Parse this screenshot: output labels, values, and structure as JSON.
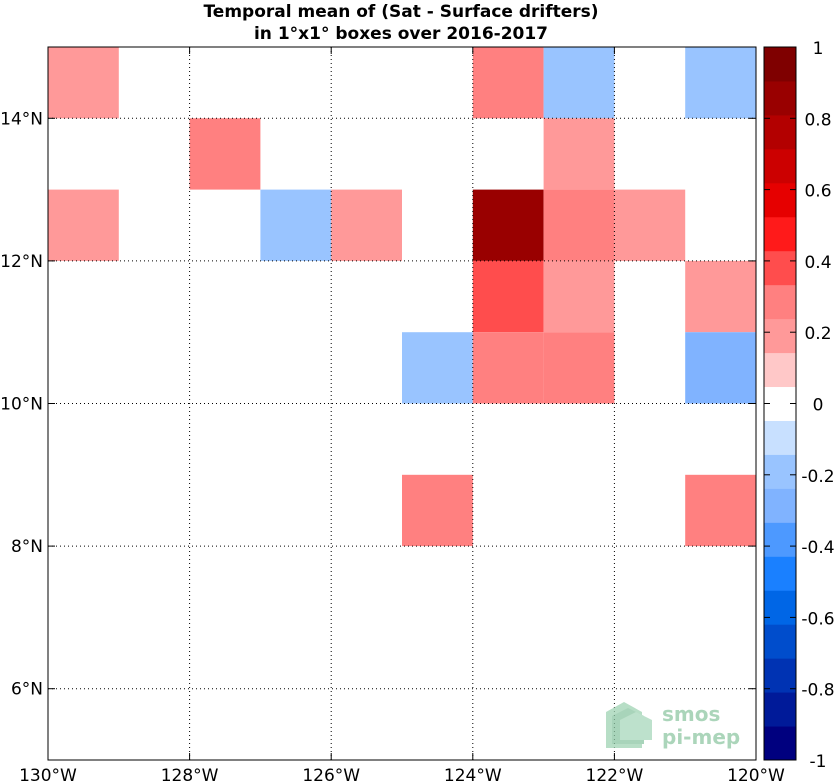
{
  "chart_data": {
    "type": "heatmap",
    "title": "Temporal mean of (Sat - Surface drifters)",
    "subtitle": "in 1°x1° boxes over 2016-2017",
    "xlim": [
      -130,
      -120
    ],
    "ylim": [
      5,
      15
    ],
    "grid": true,
    "x_ticks": [
      {
        "value": -130,
        "label": "130°W"
      },
      {
        "value": -128,
        "label": "128°W"
      },
      {
        "value": -126,
        "label": "126°W"
      },
      {
        "value": -124,
        "label": "124°W"
      },
      {
        "value": -122,
        "label": "122°W"
      },
      {
        "value": -120,
        "label": "120°W"
      }
    ],
    "y_ticks": [
      {
        "value": 6,
        "label": "6°N"
      },
      {
        "value": 8,
        "label": "8°N"
      },
      {
        "value": 10,
        "label": "10°N"
      },
      {
        "value": 12,
        "label": "12°N"
      },
      {
        "value": 14,
        "label": "14°N"
      }
    ],
    "colorbar": {
      "range": [
        -1,
        1
      ],
      "ticks": [
        {
          "value": 1,
          "label": "1"
        },
        {
          "value": 0.8,
          "label": "0.8"
        },
        {
          "value": 0.6,
          "label": "0.6"
        },
        {
          "value": 0.4,
          "label": "0.4"
        },
        {
          "value": 0.2,
          "label": "0.2"
        },
        {
          "value": 0,
          "label": "0"
        },
        {
          "value": -0.2,
          "label": "-0.2"
        },
        {
          "value": -0.4,
          "label": "-0.4"
        },
        {
          "value": -0.6,
          "label": "-0.6"
        },
        {
          "value": -0.8,
          "label": "-0.8"
        },
        {
          "value": -1,
          "label": "-1"
        }
      ],
      "colors": [
        "#00007f",
        "#001a99",
        "#0033b3",
        "#004dcc",
        "#0066e6",
        "#1a80ff",
        "#4d99ff",
        "#80b3ff",
        "#99c4ff",
        "#c8e0ff",
        "#ffffff",
        "#ffc8c8",
        "#ff9999",
        "#ff8080",
        "#ff4d4d",
        "#ff1a1a",
        "#e60000",
        "#cc0000",
        "#b30000",
        "#990000",
        "#7f0000"
      ]
    },
    "cells": [
      {
        "lon": -130,
        "lat": 14,
        "value": 0.15
      },
      {
        "lon": -124,
        "lat": 14,
        "value": 0.3
      },
      {
        "lon": -123,
        "lat": 14,
        "value": -0.15
      },
      {
        "lon": -121,
        "lat": 14,
        "value": -0.15
      },
      {
        "lon": -128,
        "lat": 13,
        "value": 0.3
      },
      {
        "lon": -123,
        "lat": 13,
        "value": 0.15
      },
      {
        "lon": -130,
        "lat": 12,
        "value": 0.15
      },
      {
        "lon": -127,
        "lat": 12,
        "value": -0.15
      },
      {
        "lon": -126,
        "lat": 12,
        "value": 0.15
      },
      {
        "lon": -124,
        "lat": 12,
        "value": 0.9
      },
      {
        "lon": -123,
        "lat": 12,
        "value": 0.3
      },
      {
        "lon": -122,
        "lat": 12,
        "value": 0.15
      },
      {
        "lon": -124,
        "lat": 11,
        "value": 0.4
      },
      {
        "lon": -123,
        "lat": 11,
        "value": 0.15
      },
      {
        "lon": -121,
        "lat": 11,
        "value": 0.15
      },
      {
        "lon": -125,
        "lat": 10,
        "value": -0.15
      },
      {
        "lon": -124,
        "lat": 10,
        "value": 0.25
      },
      {
        "lon": -123,
        "lat": 10,
        "value": 0.25
      },
      {
        "lon": -121,
        "lat": 10,
        "value": -0.25
      },
      {
        "lon": -125,
        "lat": 8,
        "value": 0.3
      },
      {
        "lon": -121,
        "lat": 8,
        "value": 0.3
      }
    ]
  },
  "logo": {
    "line1": "smos",
    "line2": "pi-mep"
  }
}
